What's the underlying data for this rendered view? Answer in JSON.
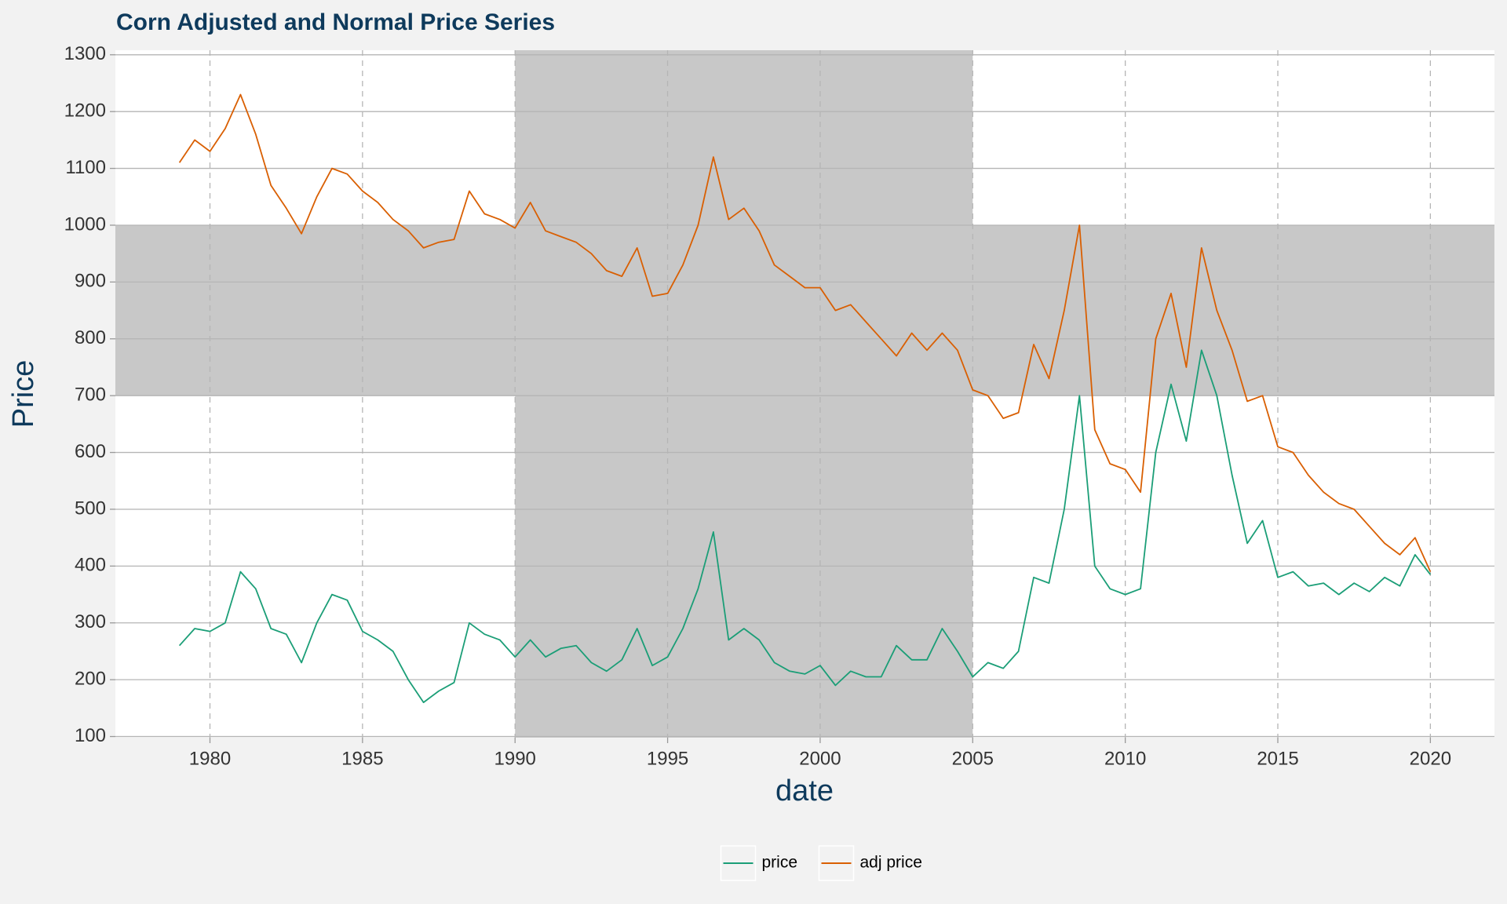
{
  "chart_data": {
    "type": "line",
    "title": "Corn Adjusted and Normal Price Series",
    "x_label": "date",
    "y_label": "Price",
    "x": [
      1979,
      1979.5,
      1980,
      1980.5,
      1981,
      1981.5,
      1982,
      1982.5,
      1983,
      1983.5,
      1984,
      1984.5,
      1985,
      1985.5,
      1986,
      1986.5,
      1987,
      1987.5,
      1988,
      1988.5,
      1989,
      1989.5,
      1990,
      1990.5,
      1991,
      1991.5,
      1992,
      1992.5,
      1993,
      1993.5,
      1994,
      1994.5,
      1995,
      1995.5,
      1996,
      1996.5,
      1997,
      1997.5,
      1998,
      1998.5,
      1999,
      1999.5,
      2000,
      2000.5,
      2001,
      2001.5,
      2002,
      2002.5,
      2003,
      2003.5,
      2004,
      2004.5,
      2005,
      2005.5,
      2006,
      2006.5,
      2007,
      2007.5,
      2008,
      2008.5,
      2009,
      2009.5,
      2010,
      2010.5,
      2011,
      2011.5,
      2012,
      2012.5,
      2013,
      2013.5,
      2014,
      2014.5,
      2015,
      2015.5,
      2016,
      2016.5,
      2017,
      2017.5,
      2018,
      2018.5,
      2019,
      2019.5,
      2020
    ],
    "series": [
      {
        "name": "price",
        "color": "#1b9e77",
        "values": [
          260,
          290,
          285,
          300,
          390,
          360,
          290,
          280,
          230,
          300,
          350,
          340,
          285,
          270,
          250,
          200,
          160,
          180,
          195,
          300,
          280,
          270,
          240,
          270,
          240,
          255,
          260,
          230,
          215,
          235,
          290,
          225,
          240,
          290,
          360,
          460,
          270,
          290,
          270,
          230,
          215,
          210,
          225,
          190,
          215,
          205,
          205,
          260,
          235,
          235,
          290,
          250,
          205,
          230,
          220,
          250,
          380,
          370,
          500,
          700,
          400,
          360,
          350,
          360,
          600,
          720,
          620,
          780,
          700,
          560,
          440,
          480,
          380,
          390,
          365,
          370,
          350,
          370,
          355,
          380,
          365,
          420,
          385
        ]
      },
      {
        "name": "adj price",
        "color": "#d95f02",
        "values": [
          1110,
          1150,
          1130,
          1170,
          1230,
          1160,
          1070,
          1030,
          985,
          1050,
          1100,
          1090,
          1060,
          1040,
          1010,
          990,
          960,
          970,
          975,
          1060,
          1020,
          1010,
          995,
          1040,
          990,
          980,
          970,
          950,
          920,
          910,
          960,
          875,
          880,
          930,
          1000,
          1120,
          1010,
          1030,
          990,
          930,
          910,
          890,
          890,
          850,
          860,
          830,
          800,
          770,
          810,
          780,
          810,
          780,
          710,
          700,
          660,
          670,
          790,
          730,
          850,
          1000,
          640,
          580,
          570,
          530,
          800,
          880,
          750,
          960,
          850,
          780,
          690,
          700,
          610,
          600,
          560,
          530,
          510,
          500,
          470,
          440,
          420,
          450,
          390
        ]
      }
    ],
    "xlim": [
      1976.9,
      2022.1
    ],
    "xticks": [
      1980,
      1985,
      1990,
      1995,
      2000,
      2005,
      2010,
      2015,
      2020
    ],
    "ylim": [
      98,
      1308
    ],
    "yticks": [
      100,
      200,
      300,
      400,
      500,
      600,
      700,
      800,
      900,
      1000,
      1100,
      1200,
      1300
    ],
    "highlight_x_range": [
      1990,
      2005
    ],
    "highlight_y_range": [
      700,
      1000
    ],
    "grid": true,
    "legend_position": "bottom"
  }
}
